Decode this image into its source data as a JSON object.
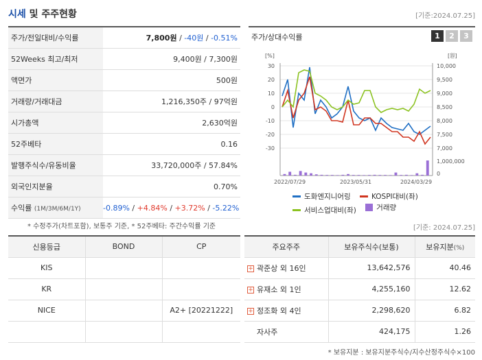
{
  "header": {
    "title_main": "시세",
    "title_rest": " 및 주주현황",
    "date": "[기준:2024.07.25]"
  },
  "quote_rows": [
    {
      "label": "주가/전일대비/수익률"
    },
    {
      "label": "52Weeks 최고/최저",
      "value": "9,400원 / 7,300원"
    },
    {
      "label": "액면가",
      "value": "500원"
    },
    {
      "label": "거래량/거래대금",
      "value": "1,216,350주 / 97억원"
    },
    {
      "label": "시가총액",
      "value": "2,630억원"
    },
    {
      "label": "52주베타",
      "value": "0.16"
    },
    {
      "label": "발행주식수/유동비율",
      "value": "33,720,000주 / 57.84%"
    },
    {
      "label": "외국인지분율",
      "value": "0.70%"
    },
    {
      "label": "수익률",
      "label_sub": "(1M/3M/6M/1Y)"
    }
  ],
  "price": {
    "value": "7,800원",
    "sep1": " / ",
    "change": "-40원",
    "sep2": " / ",
    "rate": "-0.51%"
  },
  "returns": {
    "r1m": "-0.89%",
    "r3m": "+4.84%",
    "r6m": "+3.72%",
    "r1y": "-5.22%",
    "sep": "/"
  },
  "left_note": "* 수정주가(차트포함), 보통주 기준, * 52주베타: 주간수익률 기준",
  "chart_panel": {
    "title": "주가/상대수익률",
    "tabs": [
      "1",
      "2",
      "3"
    ],
    "active_tab": "1"
  },
  "chart_data": {
    "type": "line",
    "left_axis_unit": "[%]",
    "right_axis_unit": "[원]",
    "left_ticks": [
      30,
      20,
      10,
      0,
      -10,
      -20,
      -30
    ],
    "right_ticks": [
      "10,000",
      "9,500",
      "9,000",
      "8,500",
      "8,000",
      "7,500",
      "7,000"
    ],
    "volume_ticks": [
      "1,000,000",
      "0"
    ],
    "left_ylim": [
      -30,
      30
    ],
    "right_ylim": [
      7000,
      10000
    ],
    "x_labels": [
      "2022/07/29",
      "2023/05/31",
      "2024/03/29"
    ],
    "series": [
      {
        "name": "도화엔지니어링",
        "color": "#1f6fc4",
        "values": [
          8,
          20,
          -15,
          10,
          5,
          29,
          -5,
          5,
          0,
          -8,
          -5,
          0,
          15,
          -3,
          -8,
          -10,
          -8,
          -17,
          -8,
          -12,
          -15,
          -16,
          -17,
          -12,
          -18,
          -20,
          -17,
          -14
        ]
      },
      {
        "name": "KOSPI대비(좌)",
        "color": "#d0341f",
        "values": [
          0,
          12,
          -8,
          5,
          10,
          22,
          -2,
          0,
          -3,
          -10,
          -10,
          -11,
          5,
          -13,
          -13,
          -8,
          -8,
          -12,
          -12,
          -15,
          -18,
          -18,
          -22,
          -22,
          -25,
          -18,
          -27,
          -22
        ]
      },
      {
        "name": "서비스업대비(좌)",
        "color": "#8bc220",
        "values": [
          0,
          5,
          0,
          25,
          27,
          26,
          10,
          8,
          5,
          0,
          -2,
          0,
          5,
          2,
          3,
          12,
          12,
          0,
          -4,
          -2,
          -1,
          -2,
          -1,
          -3,
          2,
          13,
          10,
          12
        ]
      }
    ],
    "volume": {
      "name": "거래량",
      "color": "#9a6fd6",
      "values": [
        0.1,
        0.25,
        0.05,
        0.3,
        0.2,
        0.15,
        0.08,
        0.05,
        0.04,
        0.04,
        0.03,
        0.05,
        0.1,
        0.04,
        0.04,
        0.03,
        0.04,
        0.05,
        0.04,
        0.04,
        0.03,
        0.2,
        0.04,
        0.05,
        0.03,
        0.15,
        0.05,
        1.0
      ]
    }
  },
  "chart_date": "[기준: 2024.07.25]",
  "credit_table": {
    "headers": [
      "신용등급",
      "BOND",
      "CP"
    ],
    "rows": [
      [
        "KIS",
        "",
        ""
      ],
      [
        "KR",
        "",
        ""
      ],
      [
        "NICE",
        "",
        "A2+ [20221222]"
      ],
      [
        "",
        "",
        ""
      ]
    ]
  },
  "holders_table": {
    "headers": [
      "주요주주",
      "보유주식수(보통)",
      "보유지분"
    ],
    "pct_unit": "(%)",
    "rows": [
      {
        "name": "곽준상 외 16인",
        "shares": "13,642,576",
        "pct": "40.46",
        "expand": true
      },
      {
        "name": "유재소 외 1인",
        "shares": "4,255,160",
        "pct": "12.62",
        "expand": true
      },
      {
        "name": "정조화 외 4인",
        "shares": "2,298,620",
        "pct": "6.82",
        "expand": true
      },
      {
        "name": "자사주",
        "shares": "424,175",
        "pct": "1.26",
        "expand": false
      }
    ]
  },
  "foot_note": "* 보유지분 : 보유지분주식수/지수산정주식수×100"
}
